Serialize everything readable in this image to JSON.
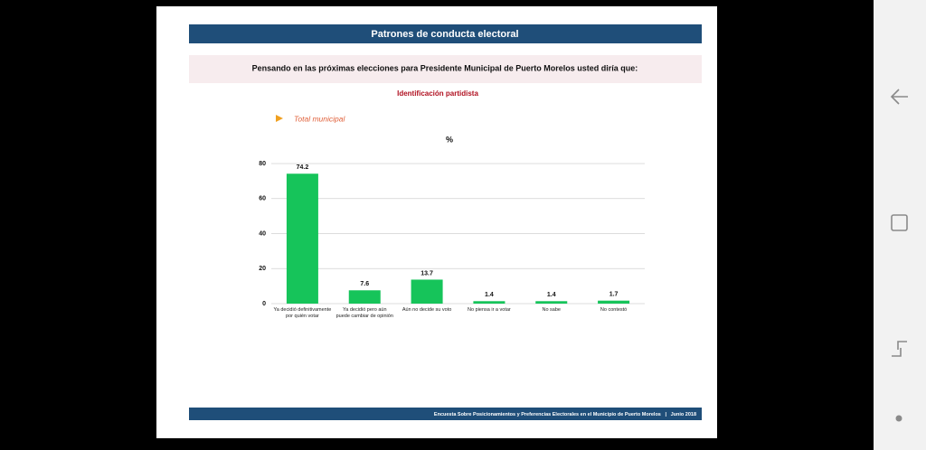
{
  "slide": {
    "title": "Patrones de conducta electoral",
    "question": "Pensando en las próximas elecciones para Presidente Municipal de Puerto Morelos usted diría que:",
    "section": "Identificación partidista",
    "footer": "Encuesta Sobre Posicionamientos y Preferencias Electorales en el Municipio de Puerto Morelos   |   Junio 2018"
  },
  "chart_data": {
    "type": "bar",
    "title": "%",
    "categories": [
      "Ya decidió definitivamente por quién votar",
      "Ya decidió pero aún puede cambiar de opinión",
      "Aún no decide su voto",
      "No piensa ir a votar",
      "No sabe",
      "No contestó"
    ],
    "series": [
      {
        "name": "Total municipal",
        "color": "#16c45a",
        "values": [
          74.2,
          7.6,
          13.7,
          1.4,
          1.4,
          1.7
        ]
      }
    ],
    "ylim": [
      0,
      80
    ],
    "yticks": [
      0,
      20,
      40,
      60,
      80
    ],
    "grid": true
  }
}
